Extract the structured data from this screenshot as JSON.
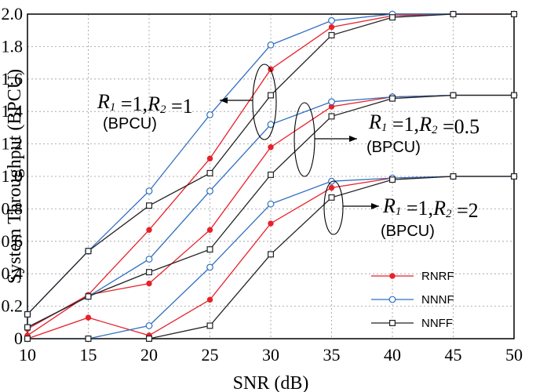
{
  "chart_data": {
    "type": "line",
    "xlabel": "SNR (dB)",
    "ylabel": "System Throughput (BPCU)",
    "xlim": [
      10,
      50
    ],
    "ylim": [
      0,
      2.0
    ],
    "xticks": [
      10,
      15,
      20,
      25,
      30,
      35,
      40,
      45,
      50
    ],
    "yticks": [
      "0",
      "0.2",
      "0.4",
      "0.6",
      "0.8",
      "1.0",
      "1.2",
      "1.4",
      "1.6",
      "1.8",
      "2.0"
    ],
    "grid": true,
    "legend_position": "bottom-right",
    "x": [
      10,
      15,
      20,
      25,
      30,
      35,
      40,
      45,
      50
    ],
    "groups": [
      {
        "R1": "1",
        "R2": "1",
        "unit": "(BPCU)",
        "series": [
          {
            "name": "RNRF",
            "values": [
              0.06,
              0.27,
              0.67,
              1.11,
              1.66,
              1.92,
              1.99,
              2.0,
              2.0
            ]
          },
          {
            "name": "NNNF",
            "values": [
              0.15,
              0.54,
              0.91,
              1.38,
              1.81,
              1.96,
              2.0,
              2.0,
              2.0
            ]
          },
          {
            "name": "NNFF",
            "values": [
              0.15,
              0.54,
              0.82,
              1.02,
              1.5,
              1.87,
              1.98,
              2.0,
              2.0
            ]
          }
        ]
      },
      {
        "R1": "1",
        "R2": "0.5",
        "unit": "(BPCU)",
        "series": [
          {
            "name": "RNRF",
            "values": [
              0.02,
              0.27,
              0.34,
              0.67,
              1.18,
              1.43,
              1.49,
              1.5,
              1.5
            ]
          },
          {
            "name": "NNNF",
            "values": [
              0.07,
              0.26,
              0.49,
              0.91,
              1.32,
              1.46,
              1.49,
              1.5,
              1.5
            ]
          },
          {
            "name": "NNFF",
            "values": [
              0.07,
              0.26,
              0.41,
              0.55,
              1.01,
              1.37,
              1.48,
              1.5,
              1.5
            ]
          }
        ]
      },
      {
        "R1": "1",
        "R2": "2",
        "unit": "(BPCU)",
        "series": [
          {
            "name": "RNRF",
            "values": [
              0.0,
              0.13,
              0.02,
              0.24,
              0.71,
              0.93,
              0.99,
              1.0,
              1.0
            ]
          },
          {
            "name": "NNNF",
            "values": [
              0.0,
              0.0,
              0.08,
              0.44,
              0.83,
              0.97,
              0.99,
              1.0,
              1.0
            ]
          },
          {
            "name": "NNFF",
            "values": [
              0.0,
              0.0,
              0.0,
              0.08,
              0.52,
              0.87,
              0.98,
              1.0,
              1.0
            ]
          }
        ]
      }
    ],
    "legend": [
      {
        "name": "RNRF",
        "color": "#e8212a",
        "marker": "filled-circle"
      },
      {
        "name": "NNNF",
        "color": "#2f6fbf",
        "marker": "open-circle"
      },
      {
        "name": "NNFF",
        "color": "#222222",
        "marker": "open-square"
      }
    ],
    "annotations": [
      {
        "group": 0,
        "r1": "R",
        "s1": "1",
        "eq1": "=1,",
        "r2": "R",
        "s2": "2",
        "eq2": "=1",
        "unit": "(BPCU)"
      },
      {
        "group": 1,
        "r1": "R",
        "s1": "1",
        "eq1": "=1,",
        "r2": "R",
        "s2": "2",
        "eq2": "=0.5",
        "unit": "(BPCU)"
      },
      {
        "group": 2,
        "r1": "R",
        "s1": "1",
        "eq1": "=1,",
        "r2": "R",
        "s2": "2",
        "eq2": "=2",
        "unit": "(BPCU)"
      }
    ]
  }
}
